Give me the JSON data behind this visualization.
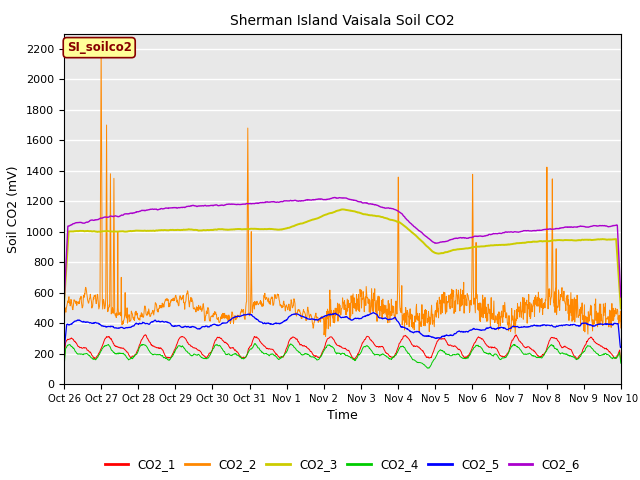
{
  "title": "Sherman Island Vaisala Soil CO2",
  "ylabel": "Soil CO2 (mV)",
  "xlabel": "Time",
  "annotation_text": "SI_soilco2",
  "ylim": [
    0,
    2300
  ],
  "yticks": [
    0,
    200,
    400,
    600,
    800,
    1000,
    1200,
    1400,
    1600,
    1800,
    2000,
    2200
  ],
  "x_tick_labels": [
    "Oct 26",
    "Oct 27",
    "Oct 28",
    "Oct 29",
    "Oct 30",
    "Oct 31",
    "Nov 1",
    "Nov 2",
    "Nov 3",
    "Nov 4",
    "Nov 5",
    "Nov 6",
    "Nov 7",
    "Nov 8",
    "Nov 9",
    "Nov 10"
  ],
  "legend_labels": [
    "CO2_1",
    "CO2_2",
    "CO2_3",
    "CO2_4",
    "CO2_5",
    "CO2_6"
  ],
  "colors": {
    "CO2_1": "#ff0000",
    "CO2_2": "#ff8800",
    "CO2_3": "#cccc00",
    "CO2_4": "#00cc00",
    "CO2_5": "#0000ff",
    "CO2_6": "#aa00cc"
  },
  "axes_facecolor": "#e8e8e8",
  "annotation_bg": "#ffff99",
  "annotation_fg": "#880000",
  "num_days": 15,
  "points_per_day": 96
}
